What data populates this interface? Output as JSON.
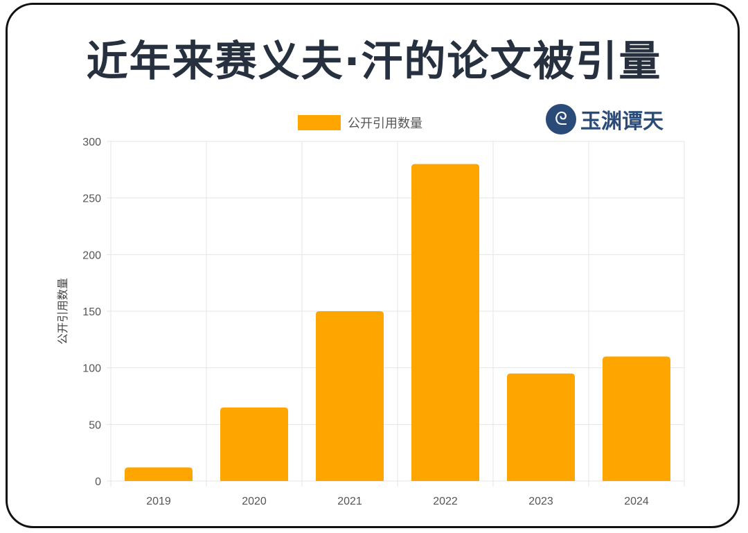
{
  "header": {
    "title": "近年来赛义夫·汗的论文被引量"
  },
  "watermark": {
    "text": "玉渊谭天",
    "icon": "wave-logo-icon"
  },
  "colors": {
    "bar": "#FFA500",
    "grid": "#e5e5e5",
    "text": "#555555"
  },
  "chart_data": {
    "type": "bar",
    "title": "近年来赛义夫·汗的论文被引量",
    "categories": [
      "2019",
      "2020",
      "2021",
      "2022",
      "2023",
      "2024"
    ],
    "series": [
      {
        "name": "公开引用数量",
        "values": [
          12,
          65,
          150,
          280,
          95,
          110
        ]
      }
    ],
    "xlabel": "",
    "ylabel": "公开引用数量",
    "ylim": [
      0,
      300
    ],
    "yticks": [
      "0",
      "50",
      "100",
      "150",
      "200",
      "250",
      "300"
    ],
    "grid": true,
    "legend": "top-center"
  }
}
